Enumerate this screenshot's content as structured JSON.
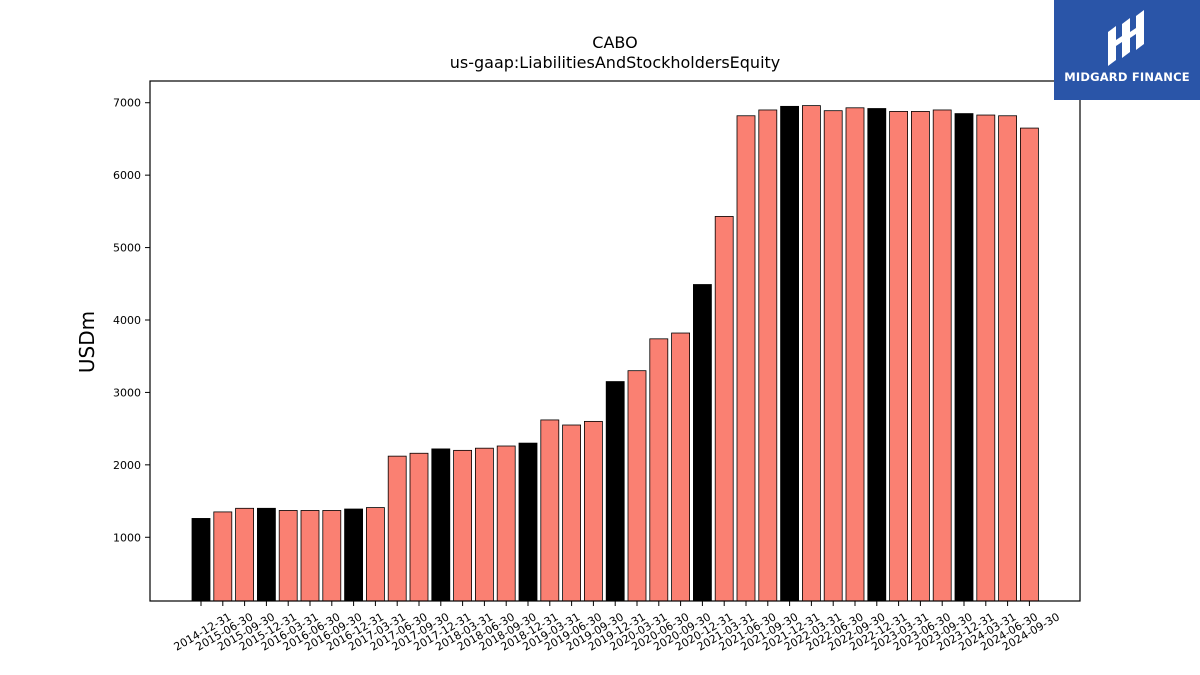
{
  "chart_data": {
    "type": "bar",
    "title": "CABO",
    "subtitle": "us-gaap:LiabilitiesAndStockholdersEquity",
    "xlabel": "",
    "ylabel": "USDm",
    "ylim": [
      120,
      7300
    ],
    "yticks": [
      1000,
      2000,
      3000,
      4000,
      5000,
      6000,
      7000
    ],
    "legend": "none",
    "grid": false,
    "colors": {
      "annual": "#000000",
      "quarterly": "#fa8072",
      "edge": "#000000"
    },
    "categories": [
      "2014-12-31",
      "2015-06-30",
      "2015-09-30",
      "2015-12-31",
      "2016-03-31",
      "2016-06-30",
      "2016-09-30",
      "2016-12-31",
      "2017-03-31",
      "2017-06-30",
      "2017-09-30",
      "2017-12-31",
      "2018-03-31",
      "2018-06-30",
      "2018-09-30",
      "2018-12-31",
      "2019-03-31",
      "2019-06-30",
      "2019-09-30",
      "2019-12-31",
      "2020-03-31",
      "2020-06-30",
      "2020-09-30",
      "2020-12-31",
      "2021-03-31",
      "2021-06-30",
      "2021-09-30",
      "2021-12-31",
      "2022-03-31",
      "2022-06-30",
      "2022-09-30",
      "2022-12-31",
      "2023-03-31",
      "2023-06-30",
      "2023-09-30",
      "2023-12-31",
      "2024-03-31",
      "2024-06-30",
      "2024-09-30"
    ],
    "values": [
      1260,
      1350,
      1400,
      1400,
      1370,
      1370,
      1370,
      1390,
      1410,
      2120,
      2160,
      2220,
      2200,
      2230,
      2260,
      2300,
      2620,
      2550,
      2600,
      3150,
      3300,
      3740,
      3820,
      4490,
      5430,
      6820,
      6900,
      6950,
      6960,
      6890,
      6930,
      6920,
      6880,
      6880,
      6900,
      6850,
      6830,
      6820,
      6650
    ],
    "annual": [
      true,
      false,
      false,
      true,
      false,
      false,
      false,
      true,
      false,
      false,
      false,
      true,
      false,
      false,
      false,
      true,
      false,
      false,
      false,
      true,
      false,
      false,
      false,
      true,
      false,
      false,
      false,
      true,
      false,
      false,
      false,
      true,
      false,
      false,
      false,
      true,
      false,
      false,
      false
    ]
  },
  "logo": {
    "text": "MIDGARD FINANCE",
    "icon": "midgard-logo-icon",
    "background": "#2a55a8"
  }
}
